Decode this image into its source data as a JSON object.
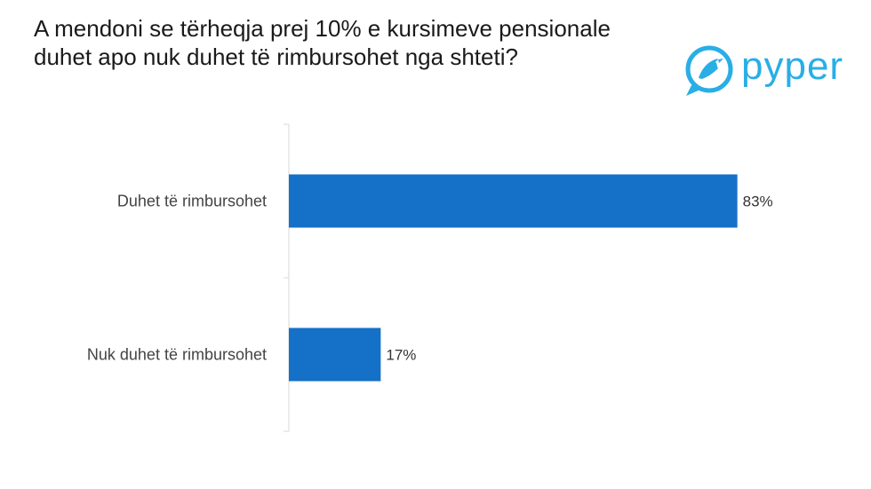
{
  "chart_data": {
    "type": "bar",
    "orientation": "horizontal",
    "title": "A mendoni se tërheqja prej 10% e kursimeve pensionale duhet apo nuk duhet të rimbursohet nga shteti?",
    "categories": [
      "Duhet të rimbursohet",
      "Nuk duhet të rimbursohet"
    ],
    "values": [
      83,
      17
    ],
    "value_labels": [
      "83%",
      "17%"
    ],
    "xlim": [
      0,
      100
    ],
    "bar_color": "#1570c8",
    "grid": false,
    "legend": "none"
  },
  "brand": {
    "name": "pyper",
    "color": "#29aee6"
  }
}
